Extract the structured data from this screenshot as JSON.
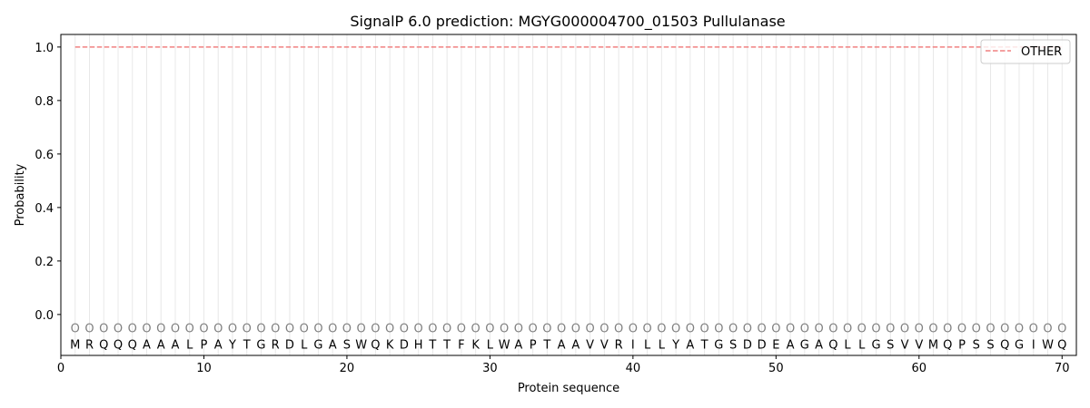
{
  "chart_data": {
    "type": "line",
    "title": "SignalP 6.0 prediction: MGYG000004700_01503 Pullulanase",
    "xlabel": "Protein sequence",
    "ylabel": "Probability",
    "xlim": [
      0,
      71
    ],
    "ylim": [
      -0.153,
      1.047
    ],
    "xticks": [
      0,
      10,
      20,
      30,
      40,
      50,
      60,
      70
    ],
    "yticks": [
      "0.0",
      "0.2",
      "0.4",
      "0.6",
      "0.8",
      "1.0"
    ],
    "grid": "vertical lines at each residue",
    "legend_position": "top-right",
    "series": [
      {
        "name": "OTHER",
        "color": "#f08080",
        "style": "dashed",
        "x": [
          1,
          70
        ],
        "y": [
          1.0,
          1.0
        ]
      }
    ],
    "sequence": [
      "M",
      "R",
      "Q",
      "Q",
      "Q",
      "A",
      "A",
      "A",
      "L",
      "P",
      "A",
      "Y",
      "T",
      "G",
      "R",
      "D",
      "L",
      "G",
      "A",
      "S",
      "W",
      "Q",
      "K",
      "D",
      "H",
      "T",
      "T",
      "F",
      "K",
      "L",
      "W",
      "A",
      "P",
      "T",
      "A",
      "A",
      "V",
      "V",
      "R",
      "I",
      "L",
      "L",
      "Y",
      "A",
      "T",
      "G",
      "S",
      "D",
      "D",
      "E",
      "A",
      "G",
      "A",
      "Q",
      "L",
      "L",
      "G",
      "S",
      "V",
      "V",
      "M",
      "Q",
      "P",
      "S",
      "S",
      "Q",
      "G",
      "I",
      "W",
      "Q"
    ],
    "predicted_label": "O",
    "marker_color": "#808080"
  }
}
